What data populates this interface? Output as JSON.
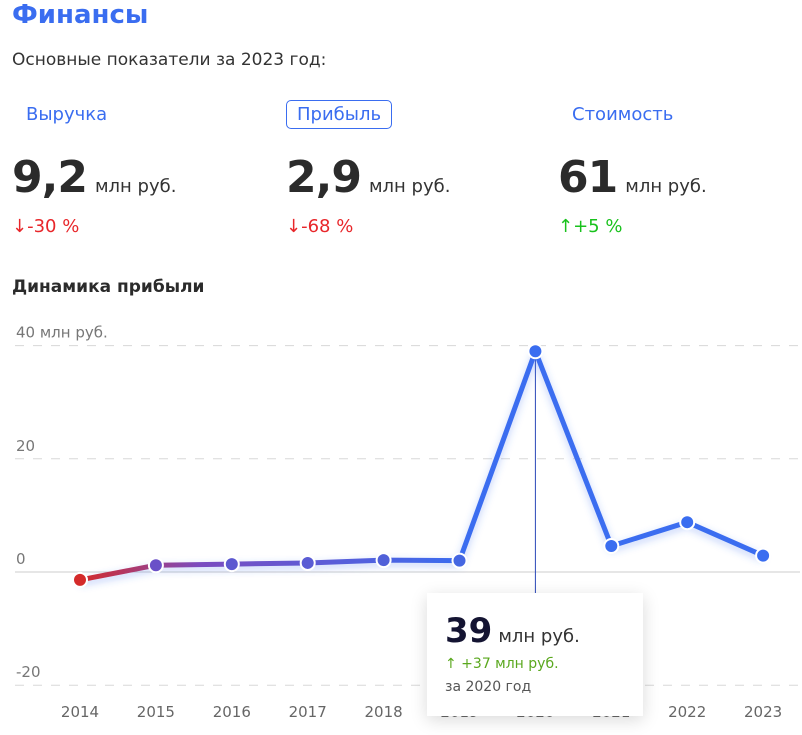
{
  "header": {
    "title": "Финансы",
    "subtitle": "Основные показатели за 2023 год:"
  },
  "tabs": [
    {
      "label": "Выручка",
      "active": false
    },
    {
      "label": "Прибыль",
      "active": true
    },
    {
      "label": "Стоимость",
      "active": false
    }
  ],
  "metrics": [
    {
      "value": "9,2",
      "unit": "млн руб.",
      "change": "↓-30 %",
      "direction": "down"
    },
    {
      "value": "2,9",
      "unit": "млн руб.",
      "change": "↓-68 %",
      "direction": "down"
    },
    {
      "value": "61",
      "unit": "млн руб.",
      "change": "↑+5 %",
      "direction": "up"
    }
  ],
  "colors": {
    "accent": "#3a6df0",
    "down": "#e8262a",
    "up": "#19c21d",
    "line_start": "#d42a2a",
    "line_end": "#3a6df0"
  },
  "chart_data": {
    "type": "line",
    "title": "Динамика прибыли",
    "categories": [
      "2014",
      "2015",
      "2016",
      "2017",
      "2018",
      "2019",
      "2020",
      "2021",
      "2022",
      "2023"
    ],
    "values": [
      -1.4,
      1.2,
      1.4,
      1.6,
      2.1,
      2,
      39,
      4.6,
      8.8,
      2.9
    ],
    "yticks": [
      "40 млн руб.",
      "20",
      "0",
      "-20"
    ],
    "ytick_values": [
      40,
      20,
      0,
      -20
    ],
    "ylim": [
      -20,
      40
    ],
    "grid": true,
    "tooltip": {
      "value": "39",
      "unit": "млн руб.",
      "change": "↑ +37 млн руб.",
      "period": "за 2020 год",
      "category": "2020"
    }
  }
}
